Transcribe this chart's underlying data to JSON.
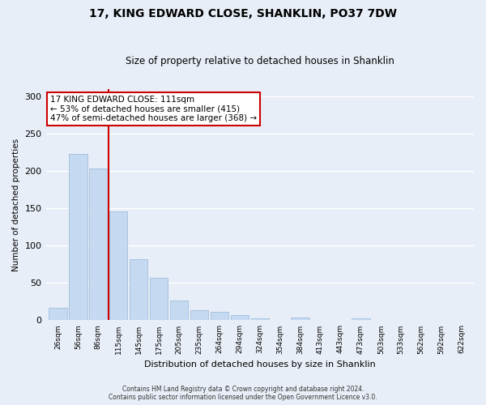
{
  "title": "17, KING EDWARD CLOSE, SHANKLIN, PO37 7DW",
  "subtitle": "Size of property relative to detached houses in Shanklin",
  "xlabel": "Distribution of detached houses by size in Shanklin",
  "ylabel": "Number of detached properties",
  "bar_labels": [
    "26sqm",
    "56sqm",
    "86sqm",
    "115sqm",
    "145sqm",
    "175sqm",
    "205sqm",
    "235sqm",
    "264sqm",
    "294sqm",
    "324sqm",
    "354sqm",
    "384sqm",
    "413sqm",
    "443sqm",
    "473sqm",
    "503sqm",
    "533sqm",
    "562sqm",
    "592sqm",
    "622sqm"
  ],
  "bar_values": [
    17,
    223,
    203,
    146,
    82,
    57,
    26,
    14,
    11,
    7,
    3,
    0,
    4,
    0,
    0,
    3,
    0,
    0,
    0,
    0,
    1
  ],
  "bar_color": "#c5d9f1",
  "bar_edge_color": "#a8c4e0",
  "vline_x": 2.5,
  "vline_color": "#cc0000",
  "annotation_title": "17 KING EDWARD CLOSE: 111sqm",
  "annotation_line1": "← 53% of detached houses are smaller (415)",
  "annotation_line2": "47% of semi-detached houses are larger (368) →",
  "annotation_box_edge": "#cc0000",
  "ylim": [
    0,
    310
  ],
  "yticks": [
    0,
    50,
    100,
    150,
    200,
    250,
    300
  ],
  "footer1": "Contains HM Land Registry data © Crown copyright and database right 2024.",
  "footer2": "Contains public sector information licensed under the Open Government Licence v3.0.",
  "bg_color": "#e8eef7",
  "plot_bg_color": "#e8eef7",
  "grid_color": "#ffffff"
}
